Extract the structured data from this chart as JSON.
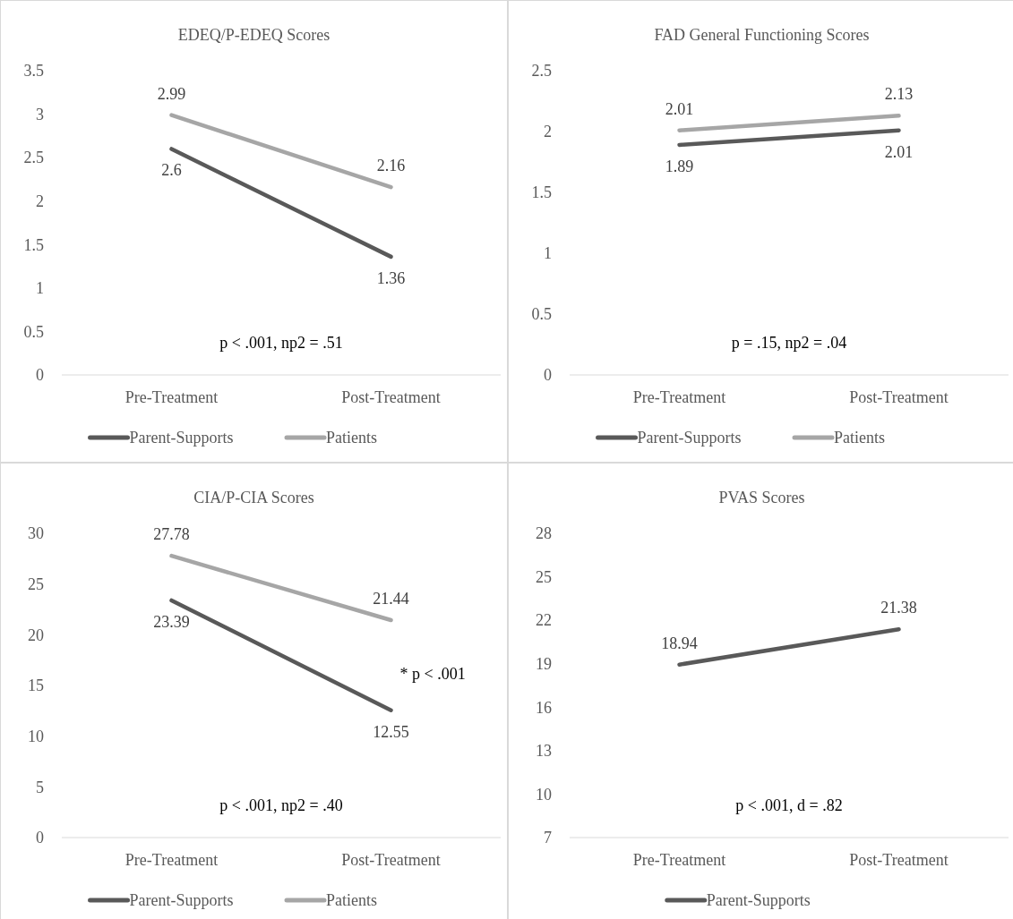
{
  "chart_data": [
    {
      "type": "line",
      "title": "EDEQ/P-EDEQ Scores",
      "categories": [
        "Pre-Treatment",
        "Post-Treatment"
      ],
      "series": [
        {
          "name": "Parent-Supports",
          "color": "#595959",
          "values": [
            2.6,
            1.36
          ]
        },
        {
          "name": "Patients",
          "color": "#a6a6a6",
          "values": [
            2.99,
            2.16
          ]
        }
      ],
      "ylim": [
        0,
        3.5
      ],
      "yticks": [
        0,
        0.5,
        1,
        1.5,
        2,
        2.5,
        3,
        3.5
      ],
      "data_labels": true,
      "legend": "bottom",
      "annotations": [
        "p < .001, np2 = .51"
      ]
    },
    {
      "type": "line",
      "title": "FAD General Functioning Scores",
      "categories": [
        "Pre-Treatment",
        "Post-Treatment"
      ],
      "series": [
        {
          "name": "Parent-Supports",
          "color": "#595959",
          "values": [
            1.89,
            2.01
          ]
        },
        {
          "name": "Patients",
          "color": "#a6a6a6",
          "values": [
            2.01,
            2.13
          ]
        }
      ],
      "ylim": [
        0,
        2.5
      ],
      "yticks": [
        0,
        0.5,
        1,
        1.5,
        2,
        2.5
      ],
      "data_labels": true,
      "legend": "bottom",
      "annotations": [
        "p = .15, np2 = .04"
      ]
    },
    {
      "type": "line",
      "title": "CIA/P-CIA Scores",
      "categories": [
        "Pre-Treatment",
        "Post-Treatment"
      ],
      "series": [
        {
          "name": "Parent-Supports",
          "color": "#595959",
          "values": [
            23.39,
            12.55
          ]
        },
        {
          "name": "Patients",
          "color": "#a6a6a6",
          "values": [
            27.78,
            21.44
          ]
        }
      ],
      "ylim": [
        0,
        30
      ],
      "yticks": [
        0,
        5,
        10,
        15,
        20,
        25,
        30
      ],
      "data_labels": true,
      "legend": "bottom",
      "annotations": [
        "p < .001, np2 = .40",
        "* p < .001"
      ]
    },
    {
      "type": "line",
      "title": "PVAS Scores",
      "categories": [
        "Pre-Treatment",
        "Post-Treatment"
      ],
      "series": [
        {
          "name": "Parent-Supports",
          "color": "#595959",
          "values": [
            18.94,
            21.38
          ]
        }
      ],
      "ylim": [
        7,
        28
      ],
      "yticks": [
        7,
        10,
        13,
        16,
        19,
        22,
        25,
        28
      ],
      "data_labels": true,
      "legend": "bottom",
      "annotations": [
        "p < .001, d = .82"
      ]
    }
  ]
}
